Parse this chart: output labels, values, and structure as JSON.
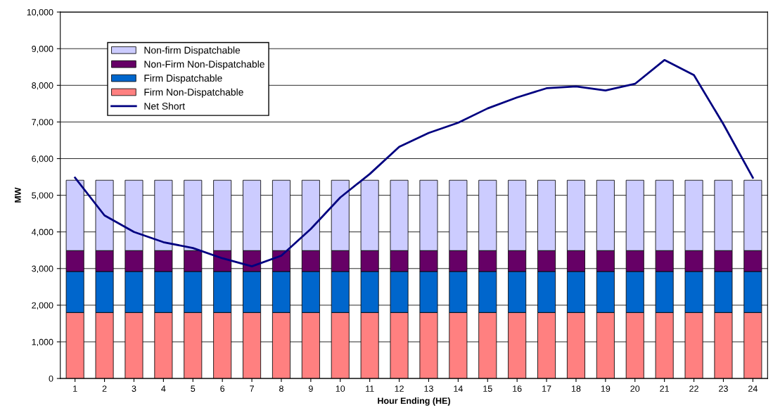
{
  "chart_data": {
    "type": "bar",
    "stacked": true,
    "xlabel": "Hour Ending (HE)",
    "ylabel": "MW",
    "categories": [
      "1",
      "2",
      "3",
      "4",
      "5",
      "6",
      "7",
      "8",
      "9",
      "10",
      "11",
      "12",
      "13",
      "14",
      "15",
      "16",
      "17",
      "18",
      "19",
      "20",
      "21",
      "22",
      "23",
      "24"
    ],
    "series": [
      {
        "name": "Firm Non-Dispatchable",
        "color": "#ff8080",
        "values": [
          1800,
          1800,
          1800,
          1800,
          1800,
          1800,
          1800,
          1800,
          1800,
          1800,
          1800,
          1800,
          1800,
          1800,
          1800,
          1800,
          1800,
          1800,
          1800,
          1800,
          1800,
          1800,
          1800,
          1800
        ]
      },
      {
        "name": "Firm Dispatchable",
        "color": "#0066cc",
        "values": [
          1120,
          1120,
          1120,
          1120,
          1120,
          1120,
          1120,
          1120,
          1120,
          1120,
          1120,
          1120,
          1120,
          1120,
          1120,
          1120,
          1120,
          1120,
          1120,
          1120,
          1120,
          1120,
          1120,
          1120
        ]
      },
      {
        "name": "Non-Firm Non-Dispatchable",
        "color": "#660066",
        "values": [
          570,
          570,
          570,
          570,
          570,
          570,
          570,
          570,
          570,
          570,
          570,
          570,
          570,
          570,
          570,
          570,
          570,
          570,
          570,
          570,
          570,
          570,
          570,
          570
        ]
      },
      {
        "name": "Non-firm Dispatchable",
        "color": "#ccccff",
        "values": [
          1920,
          1920,
          1920,
          1920,
          1920,
          1920,
          1920,
          1920,
          1920,
          1920,
          1920,
          1920,
          1920,
          1920,
          1920,
          1920,
          1920,
          1920,
          1920,
          1920,
          1920,
          1920,
          1920,
          1920
        ]
      },
      {
        "name": "Net Short",
        "type": "line",
        "color": "#000080",
        "values": [
          5480,
          4450,
          4000,
          3720,
          3560,
          3280,
          3060,
          3350,
          4080,
          4940,
          5580,
          6320,
          6700,
          6980,
          7370,
          7670,
          7920,
          7970,
          7860,
          8040,
          8690,
          8280,
          6940,
          5480
        ]
      }
    ],
    "ylim": [
      0,
      10000
    ],
    "yticks": [
      {
        "value": 0,
        "label": "0"
      },
      {
        "value": 1000,
        "label": "1,000"
      },
      {
        "value": 2000,
        "label": "2,000"
      },
      {
        "value": 3000,
        "label": "3,000"
      },
      {
        "value": 4000,
        "label": "4,000"
      },
      {
        "value": 5000,
        "label": "5,000"
      },
      {
        "value": 6000,
        "label": "6,000"
      },
      {
        "value": 7000,
        "label": "7,000"
      },
      {
        "value": 8000,
        "label": "8,000"
      },
      {
        "value": 9000,
        "label": "9,000"
      },
      {
        "value": 10000,
        "label": "10,000"
      }
    ],
    "grid": "y",
    "legend": "top left",
    "marker": "none",
    "line_style": "solid"
  }
}
